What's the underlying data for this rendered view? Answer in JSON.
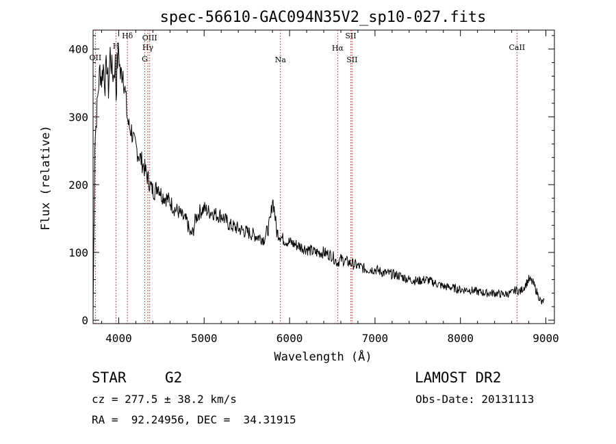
{
  "chart_data": {
    "type": "line",
    "title": "spec-56610-GAC094N35V2_sp10-027.fits",
    "xlabel": "Wavelength (Å)",
    "ylabel": "Flux (relative)",
    "xlim": [
      3700,
      9100
    ],
    "ylim": [
      -5,
      428
    ],
    "x_ticks": [
      4000,
      5000,
      6000,
      7000,
      8000,
      9000
    ],
    "y_ticks": [
      0,
      100,
      200,
      300,
      400
    ],
    "x_tick_labels": [
      "4000",
      "5000",
      "6000",
      "7000",
      "8000",
      "9000"
    ],
    "y_tick_labels": [
      "0",
      "100",
      "200",
      "300",
      "400"
    ],
    "grid": false,
    "line_color": "#000000",
    "marker_color": "#b22222",
    "series": [
      {
        "x": [
          3700,
          3720,
          3740,
          3760,
          3780,
          3800,
          3820,
          3840,
          3860,
          3880,
          3900,
          3920,
          3940,
          3960,
          3970,
          3980,
          4000,
          4020,
          4050,
          4080,
          4100,
          4120,
          4150,
          4180,
          4200,
          4250,
          4300,
          4340,
          4380,
          4420,
          4460,
          4500,
          4560,
          4600,
          4650,
          4700,
          4760,
          4800,
          4840,
          4870,
          4900,
          4950,
          5000,
          5050,
          5100,
          5150,
          5200,
          5300,
          5400,
          5500,
          5600,
          5700,
          5750,
          5780,
          5800,
          5820,
          5850,
          5890,
          5920,
          6000,
          6100,
          6200,
          6300,
          6400,
          6500,
          6560,
          6600,
          6700,
          6800,
          6900,
          7000,
          7100,
          7200,
          7300,
          7400,
          7500,
          7600,
          7700,
          7800,
          7900,
          8000,
          8100,
          8200,
          8300,
          8400,
          8500,
          8600,
          8650,
          8700,
          8750,
          8800,
          8850,
          8900,
          8950,
          8980
        ],
        "y": [
          10,
          260,
          300,
          340,
          370,
          355,
          375,
          350,
          380,
          340,
          395,
          370,
          360,
          380,
          330,
          375,
          400,
          360,
          370,
          330,
          300,
          285,
          280,
          260,
          255,
          240,
          225,
          210,
          195,
          190,
          200,
          185,
          180,
          175,
          165,
          160,
          150,
          145,
          125,
          130,
          150,
          160,
          165,
          160,
          160,
          155,
          155,
          140,
          135,
          130,
          125,
          120,
          135,
          150,
          180,
          165,
          130,
          125,
          120,
          115,
          110,
          105,
          100,
          100,
          95,
          85,
          90,
          85,
          80,
          75,
          75,
          70,
          68,
          65,
          60,
          58,
          60,
          55,
          50,
          48,
          45,
          45,
          42,
          40,
          40,
          38,
          40,
          45,
          42,
          50,
          60,
          55,
          40,
          25,
          30
        ]
      }
    ],
    "lines": [
      {
        "label": "OII",
        "x": 3727
      },
      {
        "label": "H",
        "x": 3969
      },
      {
        "label": "Hδ",
        "x": 4102
      },
      {
        "label": "G",
        "x": 4305
      },
      {
        "label": "Hγ",
        "x": 4341
      },
      {
        "label": "OIII",
        "x": 4363
      },
      {
        "label": "Na",
        "x": 5893
      },
      {
        "label": "Hα",
        "x": 6563
      },
      {
        "label": "SII",
        "x": 6716
      },
      {
        "label": "SII",
        "x": 6731
      },
      {
        "label": "CaII",
        "x": 8662
      }
    ]
  },
  "info": {
    "object_class": "STAR",
    "subclass": "G2",
    "survey": "LAMOST DR2",
    "cz_line": "cz = 277.5 ± 38.2 km/s",
    "obs_date": "Obs-Date: 20131113",
    "radec": "RA =  92.24956, DEC =  34.31915"
  }
}
